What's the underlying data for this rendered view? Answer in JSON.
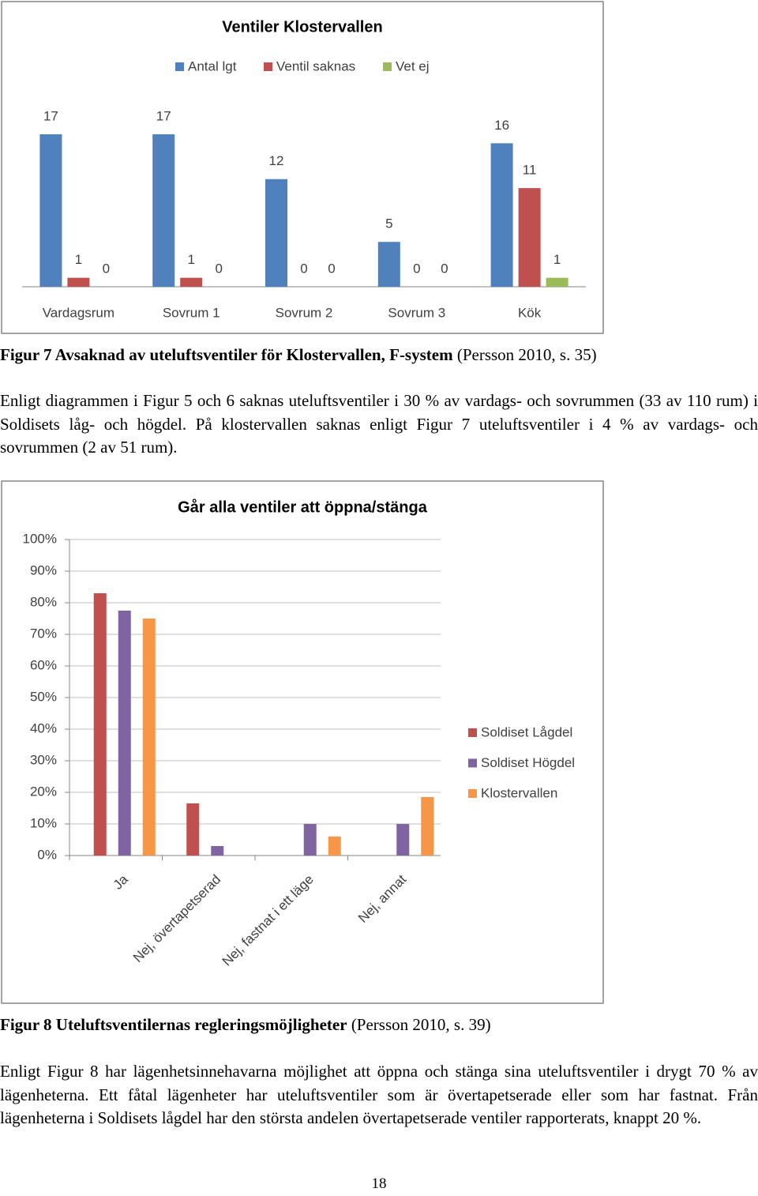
{
  "chart_data": [
    {
      "type": "bar",
      "title": "Ventiler Klostervallen",
      "categories": [
        "Vardagsrum",
        "Sovrum 1",
        "Sovrum 2",
        "Sovrum 3",
        "Kök"
      ],
      "series": [
        {
          "name": "Antal lgt",
          "color": "#4f81bd",
          "values": [
            17,
            17,
            12,
            5,
            16
          ]
        },
        {
          "name": "Ventil saknas",
          "color": "#c0504d",
          "values": [
            1,
            1,
            0,
            0,
            11
          ]
        },
        {
          "name": "Vet ej",
          "color": "#9bbb59",
          "values": [
            0,
            0,
            0,
            0,
            1
          ]
        }
      ],
      "data_labels": true,
      "legend": "top"
    },
    {
      "type": "bar",
      "title": "Går alla ventiler att öppna/stänga",
      "categories": [
        "Ja",
        "Nej, övertapetserad",
        "Nej, fastnat i ett läge",
        "Nej, annat"
      ],
      "series": [
        {
          "name": "Soldiset Lågdel",
          "color": "#c0504d",
          "values": [
            83,
            16.5,
            0,
            0
          ]
        },
        {
          "name": "Soldiset Högdel",
          "color": "#8064a2",
          "values": [
            77.5,
            3,
            10,
            10
          ]
        },
        {
          "name": "Klostervallen",
          "color": "#f79646",
          "values": [
            75,
            0,
            6,
            18.5
          ]
        }
      ],
      "ylim": [
        0,
        100
      ],
      "yticks": [
        {
          "value": 0,
          "label": "0%"
        },
        {
          "value": 10,
          "label": "10%"
        },
        {
          "value": 20,
          "label": "20%"
        },
        {
          "value": 30,
          "label": "30%"
        },
        {
          "value": 40,
          "label": "40%"
        },
        {
          "value": 50,
          "label": "50%"
        },
        {
          "value": 60,
          "label": "60%"
        },
        {
          "value": 70,
          "label": "70%"
        },
        {
          "value": 80,
          "label": "80%"
        },
        {
          "value": 90,
          "label": "90%"
        },
        {
          "value": 100,
          "label": "100%"
        }
      ],
      "grid": true,
      "legend": "right"
    }
  ],
  "figure7": {
    "caption_bold": "Figur 7 Avsaknad av uteluftsventiler för Klostervallen, F-system",
    "caption_source": "(Persson 2010, s. 35)"
  },
  "paragraph1": "Enligt diagrammen i Figur 5 och 6 saknas uteluftsventiler i 30 % av vardags- och sovrummen (33 av 110 rum) i Soldisets låg- och högdel. På klostervallen saknas enligt Figur 7 uteluftsventiler i 4 % av vardags- och sovrummen (2 av 51 rum).",
  "figure8": {
    "caption_bold": "Figur 8 Uteluftsventilernas regleringsmöjligheter",
    "caption_source": "(Persson 2010, s. 39)"
  },
  "paragraph2": "Enligt Figur 8 har lägenhetsinnehavarna möjlighet att öppna och stänga sina uteluftsventiler i drygt 70 % av lägenheterna. Ett fåtal lägenheter har uteluftsventiler som är övertapetserade eller som har fastnat. Från lägenheterna i Soldisets lågdel har den största andelen övertapetserade ventiler rapporterats, knappt 20 %.",
  "page_number": "18"
}
